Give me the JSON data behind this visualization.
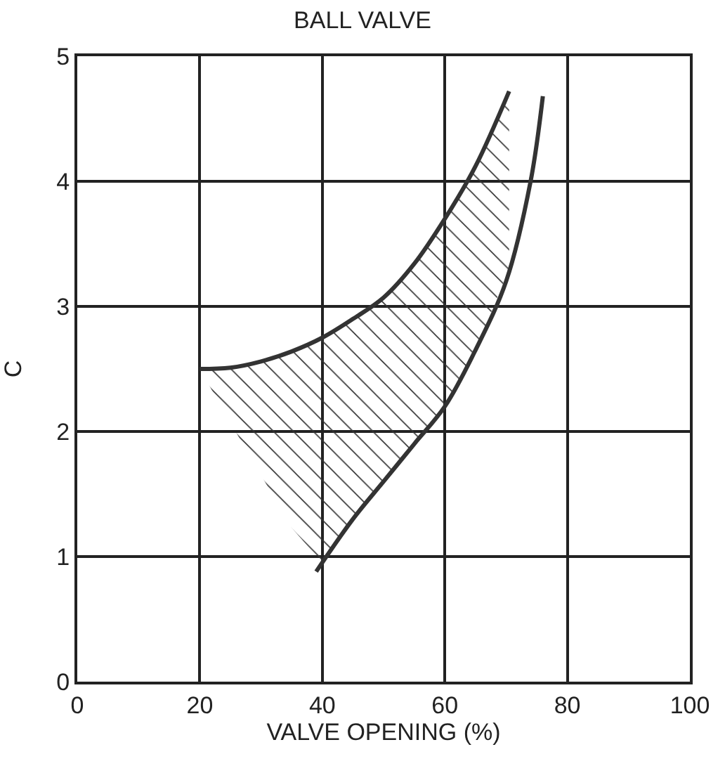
{
  "chart_data": {
    "type": "line",
    "title": "BALL VALVE",
    "xlabel": "VALVE OPENING (%)",
    "ylabel": "C",
    "series": [
      {
        "color": "#333333",
        "x": [
          20,
          25,
          30,
          35,
          40,
          45,
          50,
          55,
          60,
          65,
          70.5
        ],
        "values": [
          2.5,
          2.51,
          2.56,
          2.64,
          2.75,
          2.9,
          3.07,
          3.34,
          3.7,
          4.12,
          4.72
        ],
        "lower": [
          2.5,
          2.07,
          1.65,
          1.23,
          0.95,
          1.3,
          1.6,
          1.9,
          2.2,
          2.65,
          3.3
        ],
        "upper": [
          2.5,
          2.51,
          2.56,
          2.64,
          2.75,
          2.9,
          3.07,
          3.34,
          3.7,
          4.12,
          4.72
        ]
      },
      {
        "color": "#333333",
        "x": [
          39,
          45,
          50,
          55,
          60,
          65,
          70,
          74,
          76
        ],
        "values": [
          0.88,
          1.3,
          1.6,
          1.9,
          2.2,
          2.65,
          3.2,
          4.0,
          4.68
        ]
      }
    ],
    "xlim": [
      0,
      100
    ],
    "xticks": [
      0,
      20,
      40,
      60,
      80,
      100
    ],
    "ylim": [
      0,
      5
    ],
    "yticks": [
      0,
      1,
      2,
      3,
      4,
      5
    ],
    "grid": true,
    "marker": "none",
    "line_style": "solid"
  }
}
